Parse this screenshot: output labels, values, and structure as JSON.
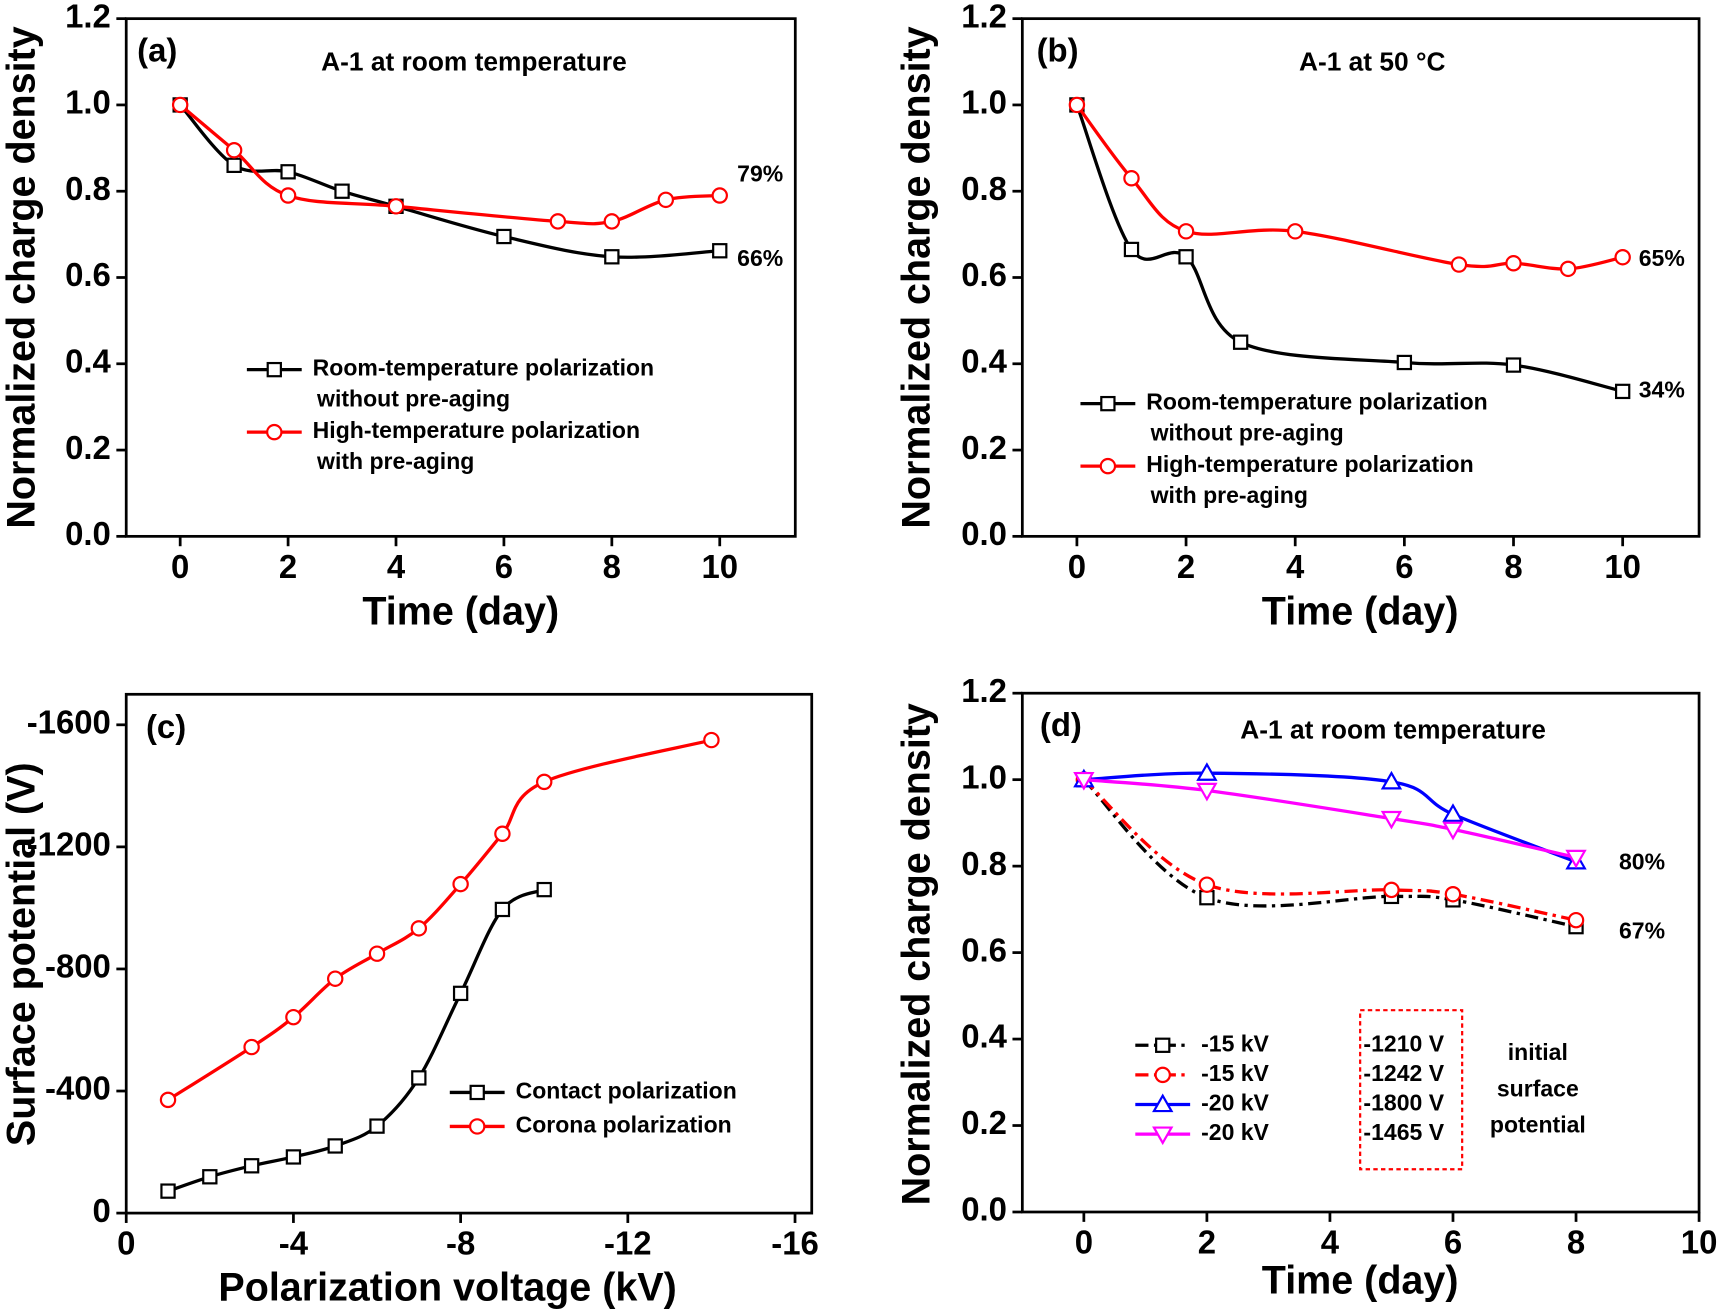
{
  "chart_data": [
    {
      "type": "line",
      "tag": "(a)",
      "title": "A-1 at room temperature",
      "xlabel": "Time (day)",
      "ylabel": "Normalized charge density",
      "xlim": [
        -1,
        11.4
      ],
      "xticks": [
        0,
        2,
        4,
        6,
        8,
        10
      ],
      "ylim": [
        0,
        1.2
      ],
      "yticks": [
        {
          "value": 0,
          "label": "0.0"
        },
        0.2,
        0.4,
        0.6,
        0.8,
        {
          "value": 1,
          "label": "1.0"
        },
        1.2
      ],
      "series": [
        {
          "name": [
            "Room-temperature polarization",
            "without pre-aging"
          ],
          "color": "#000000",
          "marker": "square",
          "dash": false,
          "x": [
            0,
            1,
            2,
            3,
            4,
            6,
            8,
            10
          ],
          "values": [
            1.0,
            0.86,
            0.845,
            0.8,
            0.765,
            0.695,
            0.648,
            0.662
          ]
        },
        {
          "name": [
            "High-temperature polarization",
            "with pre-aging"
          ],
          "color": "#ff0000",
          "marker": "circle",
          "dash": false,
          "x": [
            0,
            1,
            2,
            4,
            7,
            8,
            9,
            10
          ],
          "values": [
            1.0,
            0.895,
            0.79,
            0.765,
            0.73,
            0.73,
            0.78,
            0.79
          ]
        }
      ],
      "annotations": [
        {
          "text": "79%",
          "color": "#ff0000"
        },
        {
          "text": "66%",
          "color": "#000000"
        }
      ]
    },
    {
      "type": "line",
      "tag": "(b)",
      "title": "A-1 at 50 °C",
      "xlabel": "Time (day)",
      "ylabel": "Normalized charge density",
      "xlim": [
        -1,
        11.4
      ],
      "xticks": [
        0,
        2,
        4,
        6,
        8,
        10
      ],
      "ylim": [
        0,
        1.2
      ],
      "yticks": [
        {
          "value": 0,
          "label": "0.0"
        },
        0.2,
        0.4,
        0.6,
        0.8,
        {
          "value": 1,
          "label": "1.0"
        },
        1.2
      ],
      "series": [
        {
          "name": [
            "Room-temperature polarization",
            "without pre-aging"
          ],
          "color": "#000000",
          "marker": "square",
          "dash": false,
          "x": [
            0,
            1,
            2,
            3,
            6,
            8,
            10
          ],
          "values": [
            1.0,
            0.665,
            0.648,
            0.45,
            0.403,
            0.397,
            0.336
          ]
        },
        {
          "name": [
            "High-temperature polarization",
            "with pre-aging"
          ],
          "color": "#ff0000",
          "marker": "circle",
          "dash": false,
          "x": [
            0,
            1,
            2,
            4,
            7,
            8,
            9,
            10
          ],
          "values": [
            1.0,
            0.83,
            0.707,
            0.707,
            0.63,
            0.633,
            0.62,
            0.647
          ]
        }
      ],
      "annotations": [
        {
          "text": "65%",
          "color": "#ff0000"
        },
        {
          "text": "34%",
          "color": "#000000"
        }
      ]
    },
    {
      "type": "line",
      "tag": "(c)",
      "xlabel": "Polarization voltage (kV)",
      "ylabel": "Surface potential (V)",
      "xlim": [
        0,
        -16.4
      ],
      "xticks": [
        0,
        -4,
        -8,
        -12,
        -16
      ],
      "ylim": [
        0,
        -1700
      ],
      "yticks": [
        0,
        -400,
        -800,
        -1200,
        -1600
      ],
      "series": [
        {
          "name": [
            "Contact polarization"
          ],
          "color": "#000000",
          "marker": "square",
          "dash": false,
          "x": [
            -1,
            -2,
            -3,
            -4,
            -5,
            -6,
            -7,
            -8,
            -9,
            -10
          ],
          "values": [
            -72,
            -119,
            -155,
            -184,
            -220,
            -285,
            -443,
            -720,
            -995,
            -1060
          ]
        },
        {
          "name": [
            "Corona polarization"
          ],
          "color": "#ff0000",
          "marker": "circle",
          "dash": false,
          "x": [
            -1,
            -3,
            -4,
            -5,
            -6,
            -7,
            -8,
            -9,
            -10,
            -14
          ],
          "values": [
            -371,
            -544,
            -642,
            -768,
            -850,
            -933,
            -1078,
            -1243,
            -1413,
            -1550
          ]
        }
      ],
      "annotations": []
    },
    {
      "type": "line",
      "tag": "(d)",
      "title": "A-1 at room temperature",
      "xlabel": "Time (day)",
      "ylabel": "Normalized charge density",
      "xlim": [
        -1,
        10
      ],
      "xticks": [
        0,
        2,
        4,
        6,
        8,
        10
      ],
      "ylim": [
        0,
        1.2
      ],
      "yticks": [
        {
          "value": 0,
          "label": "0.0"
        },
        0.2,
        0.4,
        0.6,
        0.8,
        {
          "value": 1,
          "label": "1.0"
        },
        1.2
      ],
      "series": [
        {
          "name": [
            "-15 kV"
          ],
          "color": "#000000",
          "marker": "square",
          "dash": true,
          "x": [
            0,
            2,
            5,
            6,
            8
          ],
          "values": [
            1.0,
            0.727,
            0.73,
            0.722,
            0.66
          ]
        },
        {
          "name": [
            "-15 kV"
          ],
          "color": "#ff0000",
          "marker": "circle",
          "dash": true,
          "x": [
            0,
            2,
            5,
            6,
            8
          ],
          "values": [
            1.0,
            0.757,
            0.745,
            0.735,
            0.675
          ]
        },
        {
          "name": [
            "-20 kV"
          ],
          "color": "#0000ff",
          "marker": "triangle-up",
          "dash": false,
          "x": [
            0,
            2,
            5,
            6,
            8
          ],
          "values": [
            1.0,
            1.015,
            0.995,
            0.92,
            0.81
          ]
        },
        {
          "name": [
            "-20 kV"
          ],
          "color": "#ff00ff",
          "marker": "triangle-down",
          "dash": false,
          "x": [
            0,
            2,
            5,
            6,
            8
          ],
          "values": [
            1.0,
            0.975,
            0.91,
            0.885,
            0.82
          ]
        }
      ],
      "annotations": [
        {
          "text": "80%",
          "color": "#000000"
        },
        {
          "text": "67%",
          "color": "#000000"
        }
      ],
      "box_labels": [
        "-1210 V",
        "-1242 V",
        "-1800 V",
        "-1465 V"
      ],
      "note": [
        "initial",
        "surface",
        "potential"
      ]
    }
  ]
}
